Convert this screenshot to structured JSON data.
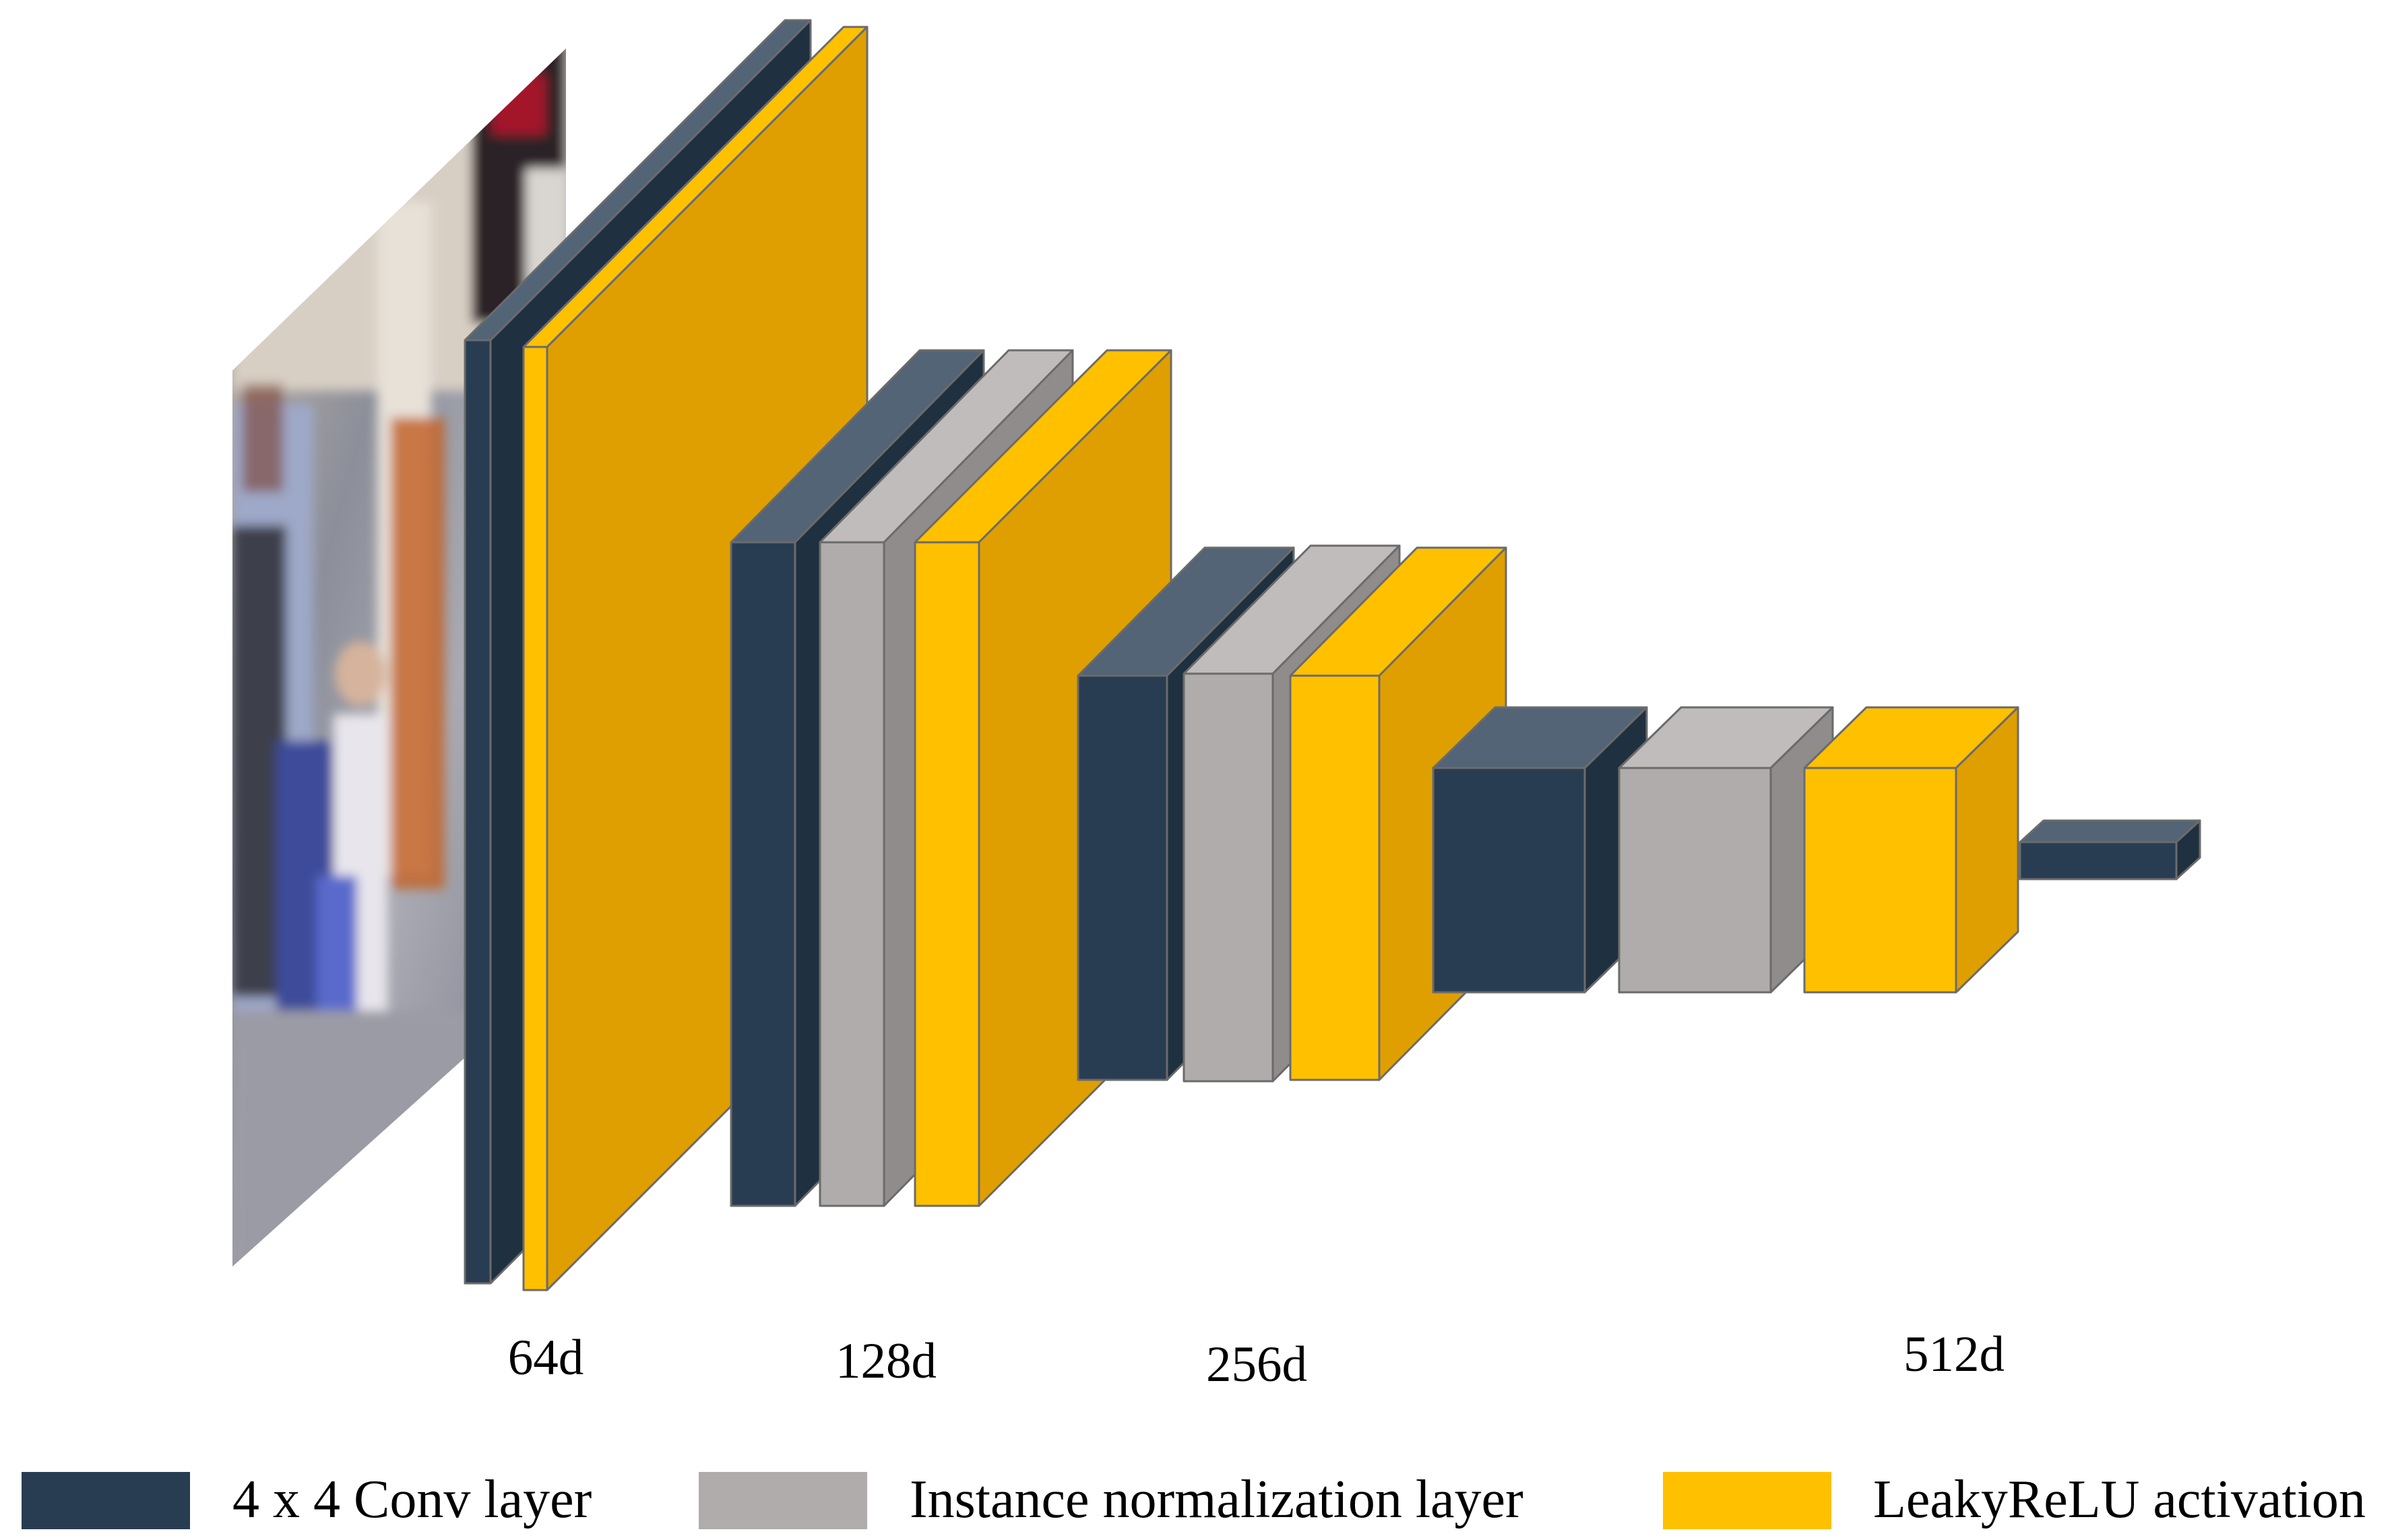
{
  "dimension_labels": [
    "64d",
    "128d",
    "256d",
    "512d"
  ],
  "legend": [
    {
      "label": "4 x 4 Conv layer",
      "color": "#293D52"
    },
    {
      "label": "Instance normalization layer",
      "color": "#AFACAB"
    },
    {
      "label": "LeakyReLU activation",
      "color": "#FFC000"
    }
  ],
  "colors": {
    "conv": {
      "front": "#293D52",
      "top": "#526475",
      "side": "#1F3040"
    },
    "norm": {
      "front": "#AFACAB",
      "top": "#C0BCBB",
      "side": "#8F8C8B"
    },
    "relu": {
      "front": "#FFC000",
      "top": "#FFC000",
      "side": "#DF9F00"
    },
    "output": {
      "front": "#293D52",
      "top": "#526475",
      "side": "#1F3040"
    }
  },
  "input_image": {
    "description_icon": "input-photo-street-scene"
  }
}
